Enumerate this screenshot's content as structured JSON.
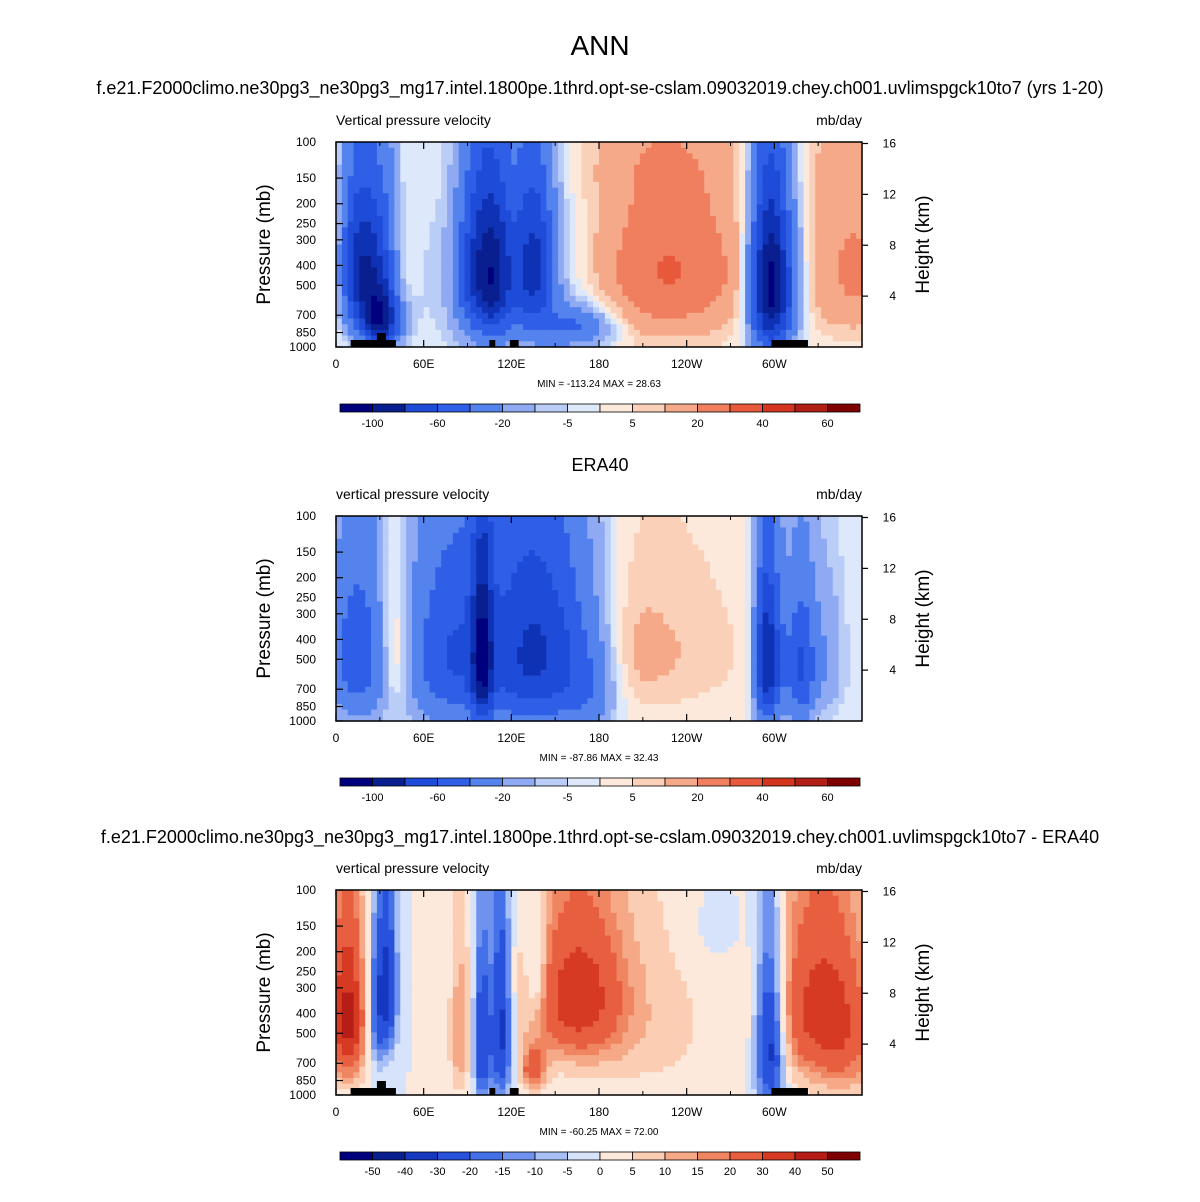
{
  "main_title": "ANN",
  "case_title": "f.e21.F2000climo.ne30pg3_ne30pg3_mg17.intel.1800pe.1thrd.opt-se-cslam.09032019.chey.ch001.uvlimspgck10to7 (yrs 1-20)",
  "obs_title": "ERA40",
  "diff_title": "f.e21.F2000climo.ne30pg3_ne30pg3_mg17.intel.1800pe.1thrd.opt-se-cslam.09032019.chey.ch001.uvlimspgck10to7 - ERA40",
  "chart_data": [
    {
      "type": "heatmap",
      "panel": "model",
      "left_title": "Vertical pressure velocity",
      "right_title": "mb/day",
      "ylabel": "Pressure (mb)",
      "ylabel_right": "Height (km)",
      "pressure_ticks": [
        "100",
        "150",
        "200",
        "250",
        "300",
        "400",
        "500",
        "700",
        "850",
        "1000"
      ],
      "pressure_values": [
        100,
        150,
        200,
        250,
        300,
        400,
        500,
        700,
        850,
        1000
      ],
      "height_ticks": [
        "16",
        "12",
        "8",
        "4"
      ],
      "height_values": [
        16,
        12,
        8,
        4
      ],
      "x_ticks": [
        "0",
        "60E",
        "120E",
        "180",
        "120W",
        "60W"
      ],
      "x_values": [
        0,
        60,
        120,
        180,
        240,
        300
      ],
      "xlim": [
        0,
        360
      ],
      "ylim": [
        1000,
        100
      ],
      "stats": "MIN = -113.24  MAX =  28.63",
      "colorbar_labels": [
        "-100",
        "-60",
        "-20",
        "-5",
        "5",
        "20",
        "40",
        "60"
      ],
      "field": [
        {
          "lon": 25,
          "p": 420,
          "lonw": 14,
          "pw": 260,
          "v": -80
        },
        {
          "lon": 30,
          "p": 750,
          "lonw": 9,
          "pw": 160,
          "v": -95
        },
        {
          "lon": 14,
          "p": 400,
          "lonw": 8,
          "pw": 220,
          "v": -35
        },
        {
          "lon": 45,
          "p": 400,
          "lonw": 7,
          "pw": 200,
          "v": 22
        },
        {
          "lon": 97,
          "p": 420,
          "lonw": 10,
          "pw": 280,
          "v": -70
        },
        {
          "lon": 110,
          "p": 450,
          "lonw": 8,
          "pw": 280,
          "v": -65
        },
        {
          "lon": 135,
          "p": 400,
          "lonw": 10,
          "pw": 260,
          "v": -75
        },
        {
          "lon": 165,
          "p": 800,
          "lonw": 18,
          "pw": 130,
          "v": -40
        },
        {
          "lon": 125,
          "p": 500,
          "lonw": 35,
          "pw": 400,
          "v": -20
        },
        {
          "lon": 235,
          "p": 420,
          "lonw": 45,
          "pw": 300,
          "v": 22
        },
        {
          "lon": 210,
          "p": 450,
          "lonw": 40,
          "pw": 380,
          "v": 10
        },
        {
          "lon": 295,
          "p": 500,
          "lonw": 9,
          "pw": 340,
          "v": -100
        },
        {
          "lon": 305,
          "p": 500,
          "lonw": 10,
          "pw": 300,
          "v": -55
        },
        {
          "lon": 340,
          "p": 420,
          "lonw": 18,
          "pw": 300,
          "v": 16
        },
        {
          "lon": 0,
          "p": 420,
          "lonw": 4,
          "pw": 260,
          "v": 12
        },
        {
          "lon": 360,
          "p": 420,
          "lonw": 10,
          "pw": 300,
          "v": 12
        },
        {
          "lon": 180,
          "p": 130,
          "lonw": 120,
          "pw": 40,
          "v": 3
        }
      ]
    },
    {
      "type": "heatmap",
      "panel": "obs",
      "left_title": "vertical pressure velocity",
      "right_title": "mb/day",
      "ylabel": "Pressure (mb)",
      "ylabel_right": "Height (km)",
      "pressure_ticks": [
        "100",
        "150",
        "200",
        "250",
        "300",
        "400",
        "500",
        "700",
        "850",
        "1000"
      ],
      "pressure_values": [
        100,
        150,
        200,
        250,
        300,
        400,
        500,
        700,
        850,
        1000
      ],
      "height_ticks": [
        "16",
        "12",
        "8",
        "4"
      ],
      "height_values": [
        16,
        12,
        8,
        4
      ],
      "x_ticks": [
        "0",
        "60E",
        "120E",
        "180",
        "120W",
        "60W"
      ],
      "x_values": [
        0,
        60,
        120,
        180,
        240,
        300
      ],
      "xlim": [
        0,
        360
      ],
      "ylim": [
        1000,
        100
      ],
      "stats": "MIN = -87.86  MAX =  32.43",
      "colorbar_labels": [
        "-100",
        "-60",
        "-20",
        "-5",
        "5",
        "20",
        "40",
        "60"
      ],
      "field": [
        {
          "lon": 15,
          "p": 480,
          "lonw": 14,
          "pw": 320,
          "v": -55
        },
        {
          "lon": 40,
          "p": 450,
          "lonw": 8,
          "pw": 240,
          "v": 25
        },
        {
          "lon": 75,
          "p": 480,
          "lonw": 20,
          "pw": 350,
          "v": -45
        },
        {
          "lon": 100,
          "p": 500,
          "lonw": 5,
          "pw": 330,
          "v": -80
        },
        {
          "lon": 140,
          "p": 480,
          "lonw": 25,
          "pw": 380,
          "v": -65
        },
        {
          "lon": 115,
          "p": 450,
          "lonw": 35,
          "pw": 420,
          "v": -25
        },
        {
          "lon": 225,
          "p": 450,
          "lonw": 40,
          "pw": 300,
          "v": 10
        },
        {
          "lon": 200,
          "p": 480,
          "lonw": 15,
          "pw": 260,
          "v": 6
        },
        {
          "lon": 293,
          "p": 520,
          "lonw": 5,
          "pw": 330,
          "v": -70
        },
        {
          "lon": 300,
          "p": 500,
          "lonw": 6,
          "pw": 300,
          "v": -55
        },
        {
          "lon": 318,
          "p": 550,
          "lonw": 7,
          "pw": 300,
          "v": -60
        },
        {
          "lon": 335,
          "p": 500,
          "lonw": 10,
          "pw": 300,
          "v": -18
        },
        {
          "lon": 175,
          "p": 700,
          "lonw": 12,
          "pw": 260,
          "v": -20
        }
      ]
    },
    {
      "type": "heatmap",
      "panel": "diff",
      "left_title": "vertical pressure velocity",
      "right_title": "mb/day",
      "ylabel": "Pressure (mb)",
      "ylabel_right": "Height (km)",
      "pressure_ticks": [
        "100",
        "150",
        "200",
        "250",
        "300",
        "400",
        "500",
        "700",
        "850",
        "1000"
      ],
      "pressure_values": [
        100,
        150,
        200,
        250,
        300,
        400,
        500,
        700,
        850,
        1000
      ],
      "height_ticks": [
        "16",
        "12",
        "8",
        "4"
      ],
      "height_values": [
        16,
        12,
        8,
        4
      ],
      "x_ticks": [
        "0",
        "60E",
        "120E",
        "180",
        "120W",
        "60W"
      ],
      "x_values": [
        0,
        60,
        120,
        180,
        240,
        300
      ],
      "xlim": [
        0,
        360
      ],
      "ylim": [
        1000,
        100
      ],
      "stats": "MIN = -60.25  MAX = 72.00",
      "colorbar_labels": [
        "-50",
        "-40",
        "-30",
        "-20",
        "-15",
        "-10",
        "-5",
        "0",
        "5",
        "10",
        "15",
        "20",
        "30",
        "40",
        "50"
      ],
      "field": [
        {
          "lon": 8,
          "p": 420,
          "lonw": 9,
          "pw": 260,
          "v": 45
        },
        {
          "lon": 27,
          "p": 400,
          "lonw": 5,
          "pw": 220,
          "v": -20
        },
        {
          "lon": 35,
          "p": 300,
          "lonw": 5,
          "pw": 200,
          "v": -30
        },
        {
          "lon": 85,
          "p": 500,
          "lonw": 5,
          "pw": 300,
          "v": 15
        },
        {
          "lon": 100,
          "p": 550,
          "lonw": 4,
          "pw": 350,
          "v": -30
        },
        {
          "lon": 113,
          "p": 480,
          "lonw": 5,
          "pw": 350,
          "v": -35
        },
        {
          "lon": 137,
          "p": 250,
          "lonw": 5,
          "pw": 120,
          "v": -15
        },
        {
          "lon": 165,
          "p": 330,
          "lonw": 22,
          "pw": 200,
          "v": 32
        },
        {
          "lon": 135,
          "p": 750,
          "lonw": 6,
          "pw": 120,
          "v": 25
        },
        {
          "lon": 200,
          "p": 450,
          "lonw": 45,
          "pw": 350,
          "v": 8
        },
        {
          "lon": 297,
          "p": 550,
          "lonw": 7,
          "pw": 350,
          "v": -40
        },
        {
          "lon": 330,
          "p": 380,
          "lonw": 22,
          "pw": 280,
          "v": 32
        },
        {
          "lon": 350,
          "p": 600,
          "lonw": 15,
          "pw": 300,
          "v": 12
        },
        {
          "lon": 260,
          "p": 150,
          "lonw": 15,
          "pw": 60,
          "v": -4
        }
      ]
    }
  ]
}
